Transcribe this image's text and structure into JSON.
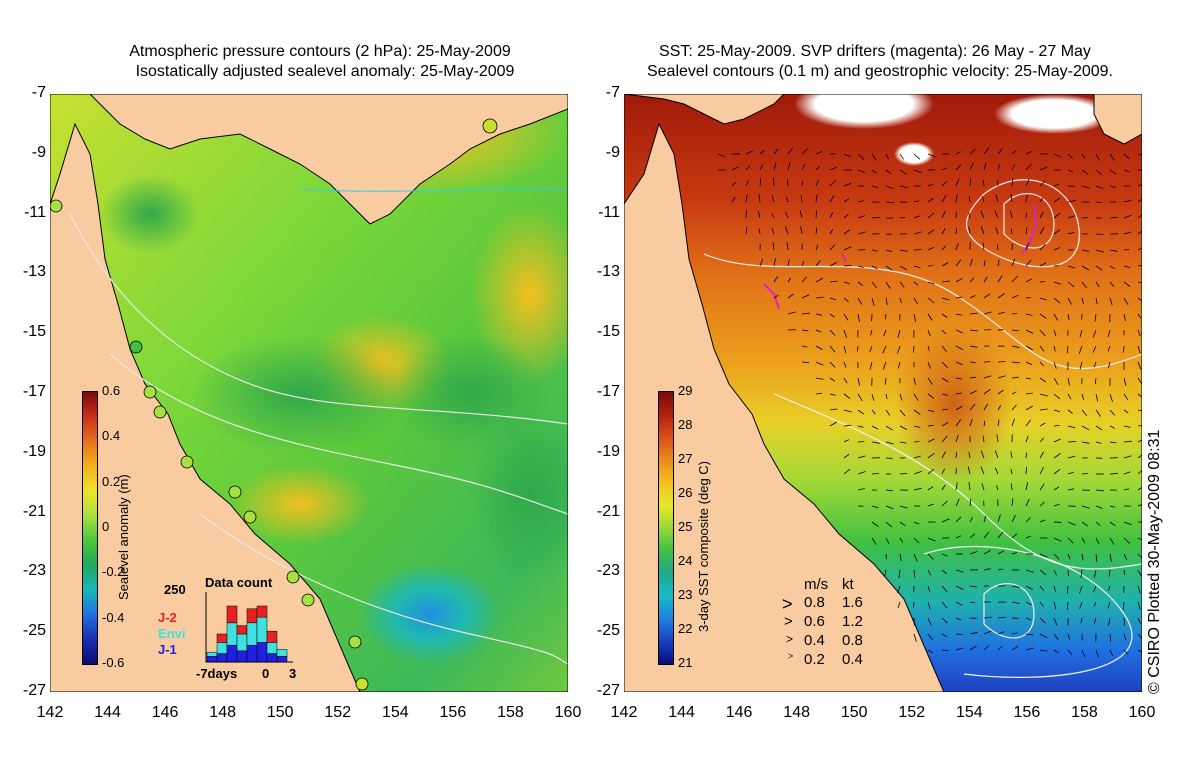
{
  "left_panel": {
    "title_line1": "Atmospheric pressure contours (2 hPa): 25-May-2009",
    "title_line2": "Isostatically adjusted sealevel anomaly: 25-May-2009",
    "y_ticks": [
      "-7",
      "-9",
      "-11",
      "-13",
      "-15",
      "-17",
      "-19",
      "-21",
      "-23",
      "-25",
      "-27"
    ],
    "x_ticks": [
      "142",
      "144",
      "146",
      "148",
      "150",
      "152",
      "154",
      "156",
      "158",
      "160"
    ],
    "colorbar": {
      "label": "Sealevel anomaly (m)",
      "ticks": [
        "0.6",
        "0.4",
        "0.2",
        "0",
        "-0.2",
        "-0.4",
        "-0.6"
      ],
      "colors": [
        "#7a0a0a",
        "#c8301a",
        "#e8721c",
        "#f4b21e",
        "#f0e22a",
        "#a8e040",
        "#4cc838",
        "#20a860",
        "#18b8b8",
        "#2070e0",
        "#1830b0",
        "#0a0a70"
      ]
    },
    "data_count": {
      "title": "Data count",
      "y_label": "250",
      "legend": [
        {
          "label": "J-2",
          "color": "#e82020"
        },
        {
          "label": "Envi",
          "color": "#40e0e0"
        },
        {
          "label": "J-1",
          "color": "#2020e0"
        }
      ],
      "x_labels": [
        "-7days",
        "0",
        "3"
      ],
      "bars": [
        {
          "j1": 20,
          "envi": 15,
          "j2": 0
        },
        {
          "j1": 30,
          "envi": 40,
          "j2": 30
        },
        {
          "j1": 60,
          "envi": 80,
          "j2": 60
        },
        {
          "j1": 40,
          "envi": 60,
          "j2": 30
        },
        {
          "j1": 60,
          "envi": 80,
          "j2": 50
        },
        {
          "j1": 70,
          "envi": 90,
          "j2": 40
        },
        {
          "j1": 30,
          "envi": 40,
          "j2": 40
        },
        {
          "j1": 20,
          "envi": 25,
          "j2": 0
        }
      ]
    }
  },
  "right_panel": {
    "title_line1": "SST: 25-May-2009. SVP drifters (magenta): 26 May - 27 May",
    "title_line2": "Sealevel contours (0.1 m) and geostrophic velocity: 25-May-2009.",
    "y_ticks": [
      "-7",
      "-9",
      "-11",
      "-13",
      "-15",
      "-17",
      "-19",
      "-21",
      "-23",
      "-25",
      "-27"
    ],
    "x_ticks": [
      "142",
      "144",
      "146",
      "148",
      "150",
      "152",
      "154",
      "156",
      "158",
      "160"
    ],
    "colorbar": {
      "label": "3-day SST composite (deg C)",
      "ticks": [
        "29",
        "28",
        "27",
        "26",
        "25",
        "24",
        "23",
        "22",
        "21"
      ],
      "colors": [
        "#7a0a0a",
        "#b02010",
        "#d85018",
        "#ec8a1c",
        "#f4c020",
        "#e8e828",
        "#98d838",
        "#40c040",
        "#20a890",
        "#18b8c8",
        "#2080e0",
        "#1840c0",
        "#0a0a80"
      ]
    },
    "velocity_legend": {
      "header_ms": "m/s",
      "header_kt": "kt",
      "rows": [
        {
          "ms": "0.8",
          "kt": "1.6"
        },
        {
          "ms": "0.6",
          "kt": "1.2"
        },
        {
          "ms": "0.4",
          "kt": "0.8"
        },
        {
          "ms": "0.2",
          "kt": "0.4"
        }
      ]
    }
  },
  "copyright": "© CSIRO Plotted 30-May-2009 08:31",
  "colors": {
    "land": "#f8cca0",
    "coast": "#000000",
    "contour": "#e8e8e8",
    "drifter": "#e020c0"
  }
}
